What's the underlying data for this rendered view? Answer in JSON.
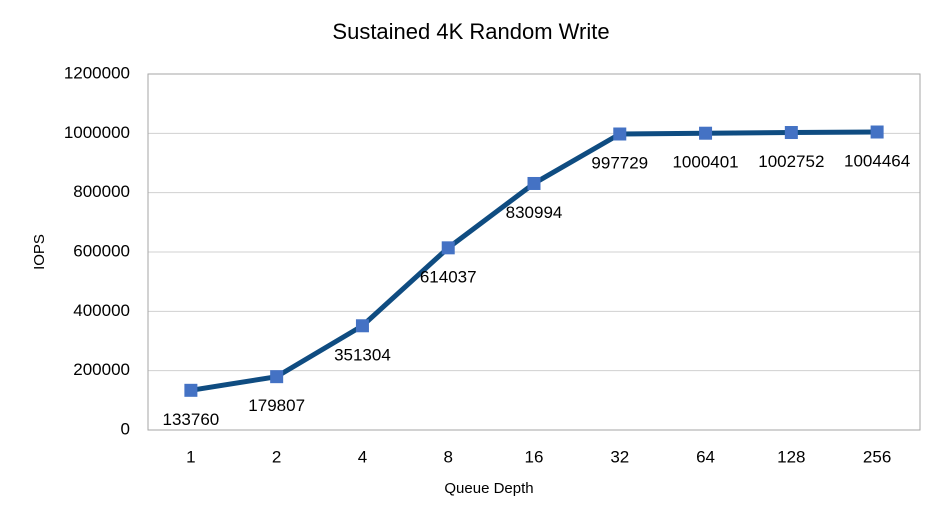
{
  "chart_data": {
    "type": "line",
    "title": "Sustained 4K Random Write",
    "x_label": "Queue Depth",
    "y_label": "IOPS",
    "categories": [
      "1",
      "2",
      "4",
      "8",
      "16",
      "32",
      "64",
      "128",
      "256"
    ],
    "series": [
      {
        "color": "#0f4c81",
        "marker_color": "#4472c4",
        "values": [
          133760,
          179807,
          351304,
          614037,
          830994,
          997729,
          1000401,
          1002752,
          1004464
        ]
      }
    ],
    "ylim": [
      0,
      1200000
    ],
    "yticks": [
      0,
      200000,
      400000,
      600000,
      800000,
      1000000,
      1200000
    ],
    "grid": true
  }
}
